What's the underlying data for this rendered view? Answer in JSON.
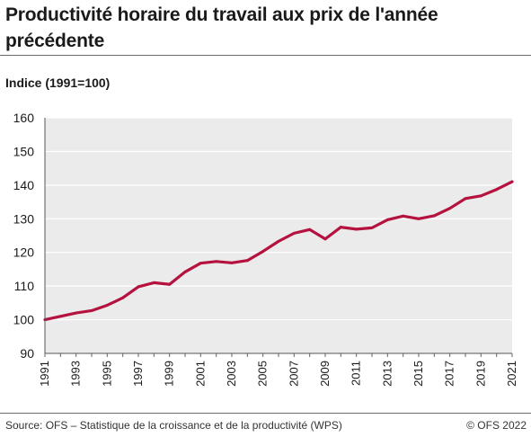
{
  "chart_data": {
    "type": "line",
    "title": "Productivité horaire du travail aux prix de l'année précédente",
    "ylabel": "Indice (1991=100)",
    "xlabel": "",
    "ylim": [
      90,
      160
    ],
    "yticks": [
      90,
      100,
      110,
      120,
      130,
      140,
      150,
      160
    ],
    "xticks": [
      "1991",
      "1993",
      "1995",
      "1997",
      "1999",
      "2001",
      "2003",
      "2005",
      "2007",
      "2009",
      "2011",
      "2013",
      "2015",
      "2017",
      "2019",
      "2021"
    ],
    "grid": true,
    "legend": "none",
    "series": [
      {
        "color": "#b5123f",
        "x": [
          1991,
          1992,
          1993,
          1994,
          1995,
          1996,
          1997,
          1998,
          1999,
          2000,
          2001,
          2002,
          2003,
          2004,
          2005,
          2006,
          2007,
          2008,
          2009,
          2010,
          2011,
          2012,
          2013,
          2014,
          2015,
          2016,
          2017,
          2018,
          2019,
          2020,
          2021
        ],
        "values": [
          100,
          101,
          102,
          102.7,
          104.3,
          106.5,
          109.8,
          111,
          110.5,
          114.2,
          116.8,
          117.3,
          116.9,
          117.6,
          120.3,
          123.3,
          125.7,
          126.8,
          124,
          127.5,
          126.9,
          127.3,
          129.7,
          130.8,
          130,
          130.9,
          133.1,
          136,
          136.8,
          138.7,
          141
        ]
      }
    ]
  },
  "footer": {
    "source": "Source: OFS – Statistique de la croissance et de la productivité (WPS)",
    "copyright": "© OFS 2022"
  }
}
